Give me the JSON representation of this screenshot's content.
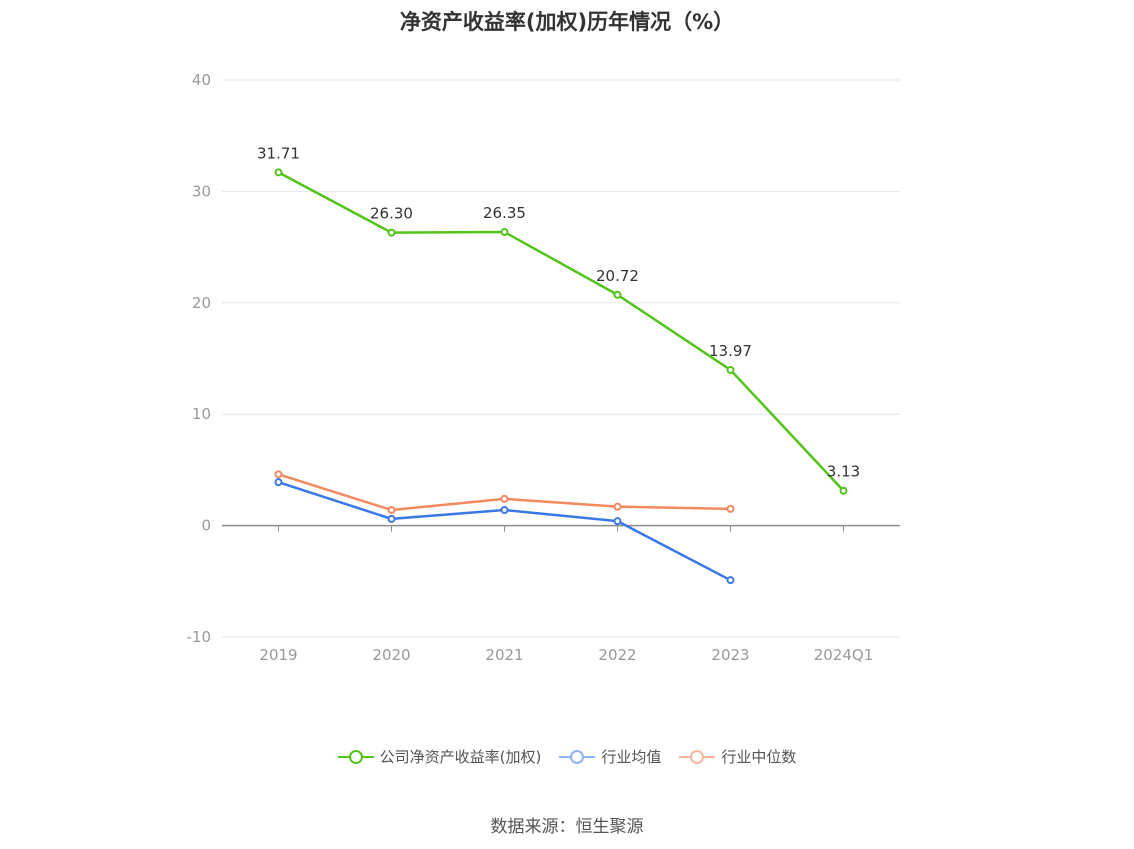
{
  "chart_data": {
    "type": "line",
    "title": "净资产收益率(加权)历年情况（%）",
    "categories": [
      "2019",
      "2020",
      "2021",
      "2022",
      "2023",
      "2024Q1"
    ],
    "ylim": [
      -10,
      40
    ],
    "yticks": [
      40,
      30,
      20,
      10,
      0,
      -10
    ],
    "grid": true,
    "legend_position": "bottom",
    "series": [
      {
        "name": "公司净资产收益率(加权)",
        "color": "#52c41a",
        "values": [
          31.71,
          26.3,
          26.35,
          20.72,
          13.97,
          3.13
        ],
        "labels": [
          "31.71",
          "26.30",
          "26.35",
          "20.72",
          "13.97",
          "3.13"
        ]
      },
      {
        "name": "行业均值",
        "color": "#3b78e7",
        "values": [
          3.9,
          0.6,
          1.4,
          0.4,
          -4.9,
          null
        ]
      },
      {
        "name": "行业中位数",
        "color": "#f4895f",
        "values": [
          4.6,
          1.4,
          2.4,
          1.7,
          1.5,
          null
        ]
      }
    ],
    "legend_colors": [
      "#52c41a",
      "#8fb4f0",
      "#f7b59b"
    ]
  },
  "source": "数据来源：恒生聚源"
}
